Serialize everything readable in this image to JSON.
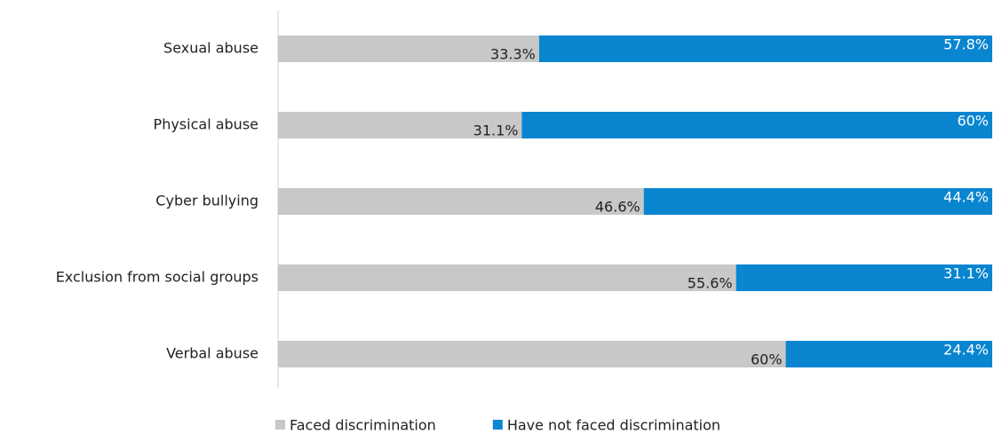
{
  "chart_data": {
    "type": "stacked-bar",
    "orientation": "horizontal",
    "stacking": "percent",
    "categories": [
      "Sexual abuse",
      "Physical abuse",
      "Cyber bullying",
      "Exclusion from social groups",
      "Verbal abuse"
    ],
    "series": [
      {
        "name": "Faced discrimination",
        "color": "#c8c8c8",
        "values": [
          33.3,
          31.1,
          46.6,
          55.6,
          60
        ],
        "value_labels": [
          "33.3%",
          "31.1%",
          "46.6%",
          "55.6%",
          "60%"
        ]
      },
      {
        "name": "Have not faced discrimination",
        "color": "#0a85d0",
        "values": [
          57.8,
          60,
          44.4,
          31.1,
          24.4
        ],
        "value_labels": [
          "57.8%",
          "60%",
          "44.4%",
          "31.1%",
          "24.4%"
        ]
      }
    ],
    "legend": "bottom"
  }
}
